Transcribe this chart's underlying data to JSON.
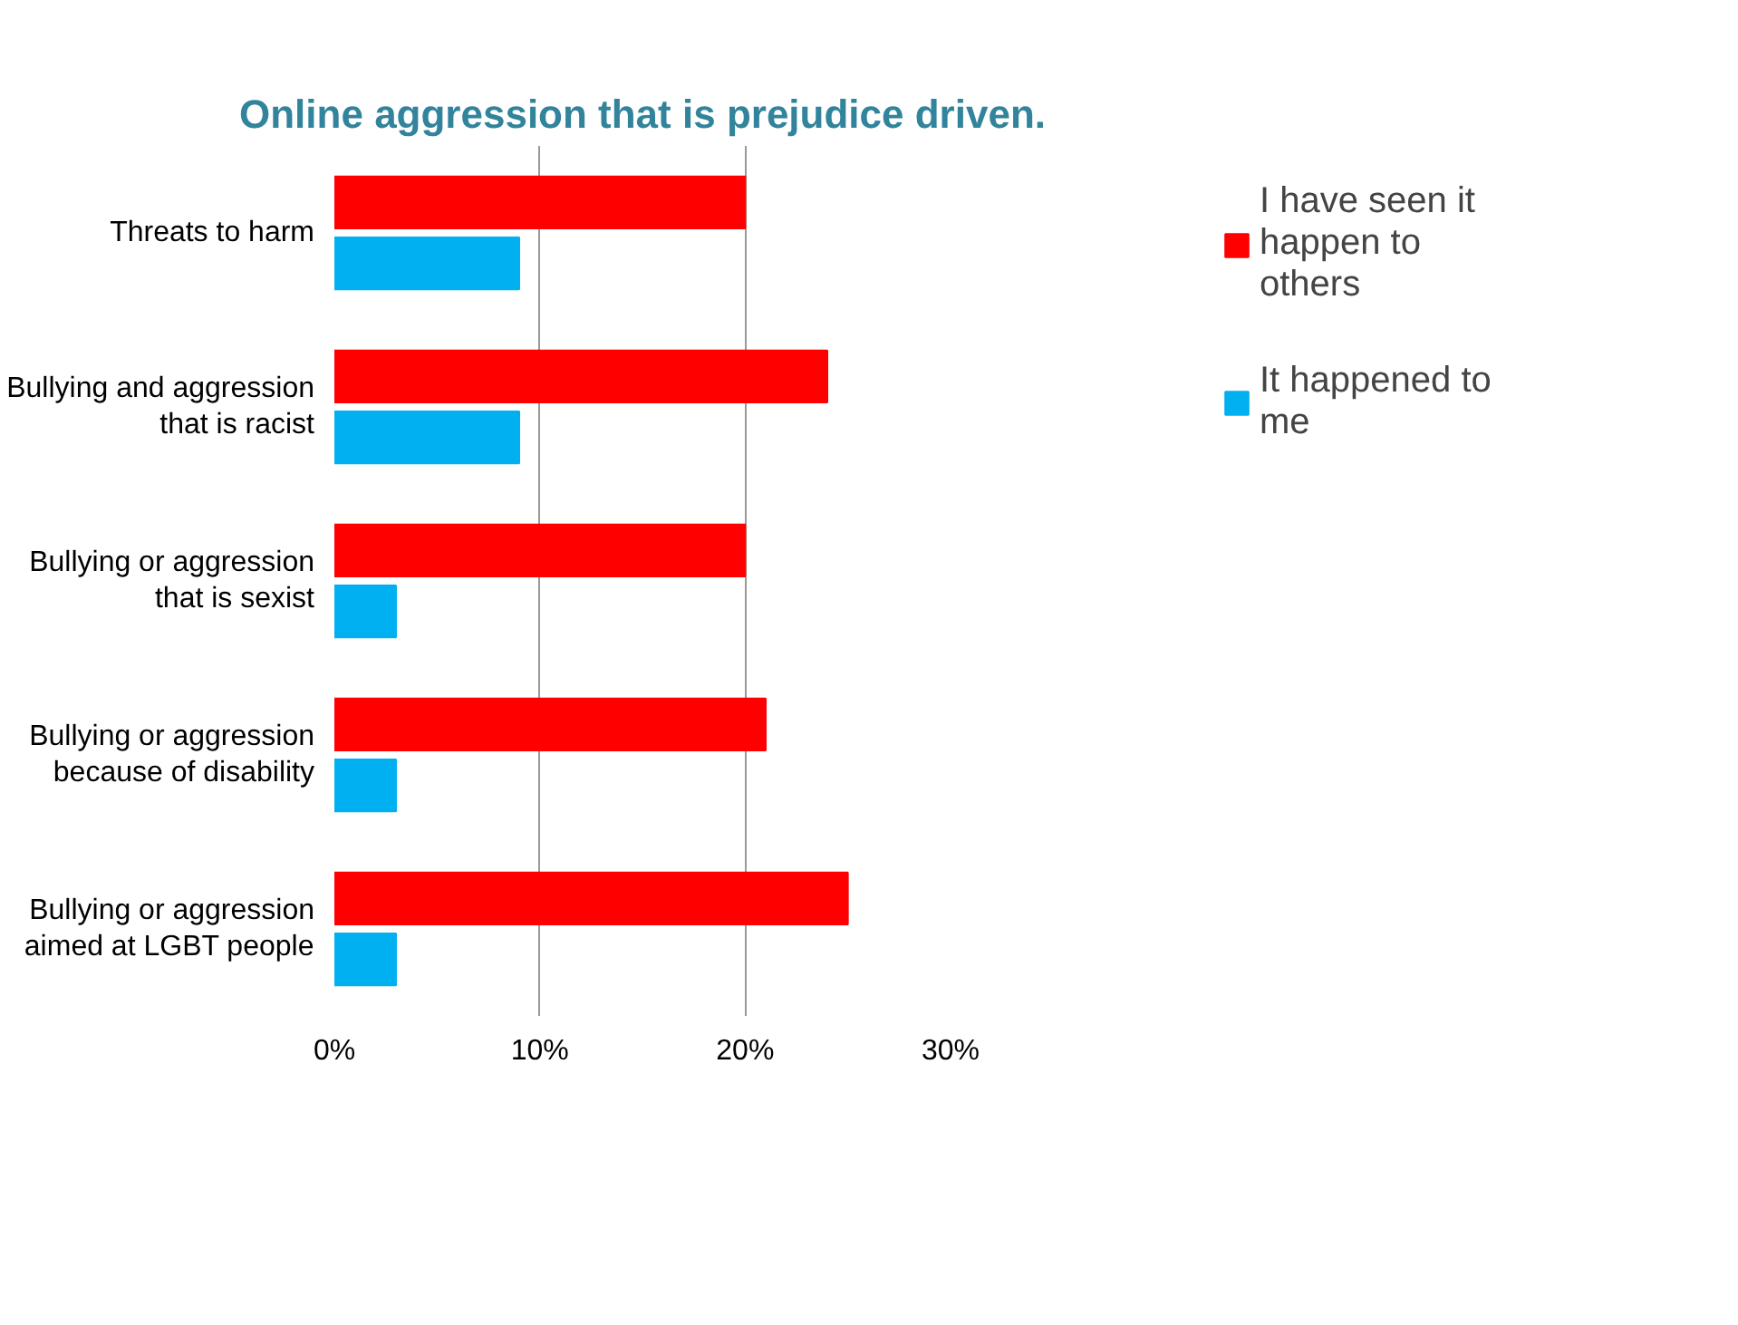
{
  "chart_data": {
    "type": "bar",
    "orientation": "horizontal",
    "title": "Online aggression that is prejudice driven.",
    "categories": [
      "Threats to harm",
      "Bullying and aggression that is racist",
      "Bullying or aggression that is sexist",
      "Bullying or aggression because of disability",
      "Bullying or aggression aimed at LGBT people"
    ],
    "series": [
      {
        "name": "I have seen it happen to others",
        "color": "#ff0000",
        "values": [
          20,
          24,
          20,
          21,
          25
        ]
      },
      {
        "name": "It happened to me",
        "color": "#00b0f0",
        "values": [
          9,
          9,
          3,
          3,
          3
        ]
      }
    ],
    "xlim": [
      0,
      30
    ],
    "xticks": [
      {
        "value": 0,
        "label": "0%"
      },
      {
        "value": 10,
        "label": "10%"
      },
      {
        "value": 20,
        "label": "20%"
      },
      {
        "value": 30,
        "label": "30%"
      }
    ],
    "grid": "x",
    "legend": "right"
  }
}
